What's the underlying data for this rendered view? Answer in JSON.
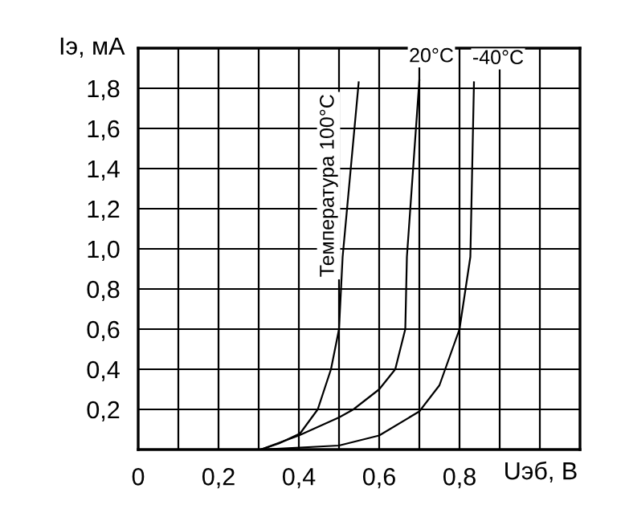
{
  "chart_data": {
    "type": "line",
    "xlabel": "Uэб, В",
    "ylabel": "Iэ, мА",
    "xlim": [
      0,
      1.1
    ],
    "ylim": [
      0,
      2.0
    ],
    "xticks": [
      0,
      {
        "value": 0.1,
        "label": null
      },
      {
        "value": 0.2,
        "label": "0,2"
      },
      {
        "value": 0.3,
        "label": null
      },
      {
        "value": 0.4,
        "label": "0,4"
      },
      {
        "value": 0.5,
        "label": null
      },
      {
        "value": 0.6,
        "label": "0,6"
      },
      {
        "value": 0.7,
        "label": null
      },
      {
        "value": 0.8,
        "label": "0,8"
      },
      {
        "value": 0.9,
        "label": null
      },
      {
        "value": 1.0,
        "label": null
      },
      {
        "value": 1.1,
        "label": null
      }
    ],
    "yticks": [
      {
        "value": 0,
        "label": null
      },
      {
        "value": 0.2,
        "label": "0,2"
      },
      {
        "value": 0.4,
        "label": "0,4"
      },
      {
        "value": 0.6,
        "label": "0,6"
      },
      {
        "value": 0.8,
        "label": "0,8"
      },
      {
        "value": 1.0,
        "label": "1,0"
      },
      {
        "value": 1.2,
        "label": "1,2"
      },
      {
        "value": 1.4,
        "label": "1,4"
      },
      {
        "value": 1.6,
        "label": "1,6"
      },
      {
        "value": 1.8,
        "label": "1,8"
      },
      {
        "value": 2.0,
        "label": null
      }
    ],
    "grid": true,
    "legend": false,
    "marker": "none",
    "line_style": "solid",
    "series": [
      {
        "name": "Температура 100°C",
        "color": "#000000",
        "x": [
          0.305,
          0.35,
          0.403,
          0.447,
          0.48,
          0.5,
          0.509,
          0.549
        ],
        "values": [
          0,
          0.03,
          0.08,
          0.2,
          0.4,
          0.6,
          0.96,
          1.83
        ]
      },
      {
        "name": "20°C",
        "color": "#000000",
        "x": [
          0.305,
          0.4,
          0.5,
          0.536,
          0.6,
          0.64,
          0.665,
          0.669,
          0.7
        ],
        "values": [
          0,
          0.07,
          0.16,
          0.2,
          0.3,
          0.4,
          0.6,
          0.96,
          1.84
        ]
      },
      {
        "name": "-40°C",
        "color": "#000000",
        "x": [
          0.305,
          0.5,
          0.6,
          0.7,
          0.75,
          0.8,
          0.827,
          0.836
        ],
        "values": [
          0,
          0.02,
          0.07,
          0.19,
          0.32,
          0.6,
          0.96,
          1.83
        ]
      }
    ]
  }
}
